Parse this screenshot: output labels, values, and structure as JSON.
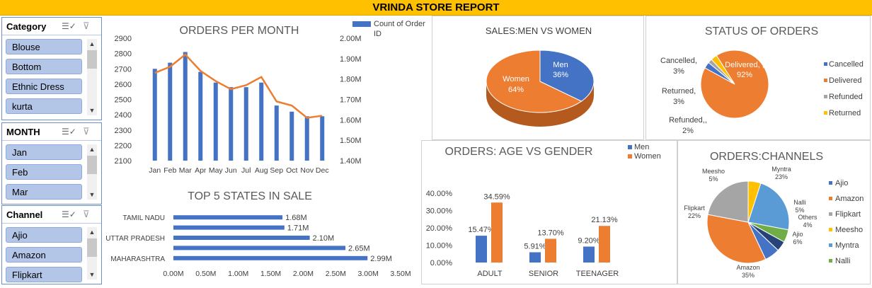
{
  "report_title": "VRINDA STORE REPORT",
  "slicers": [
    {
      "title": "Category",
      "items": [
        "Blouse",
        "Bottom",
        "Ethnic Dress",
        "kurta"
      ]
    },
    {
      "title": "MONTH",
      "items": [
        "Jan",
        "Feb",
        "Mar"
      ]
    },
    {
      "title": "Channel",
      "items": [
        "Ajio",
        "Amazon",
        "Flipkart"
      ]
    }
  ],
  "colors": {
    "blue": "#4472C4",
    "orange": "#ED7D31",
    "gray": "#A5A5A5",
    "yellow": "#FFC000",
    "lightblue": "#5B9BD5",
    "green": "#70AD47",
    "navy": "#264478"
  },
  "chart_data": [
    {
      "type": "bar",
      "title": "ORDERS PER MONTH",
      "categories": [
        "Jan",
        "Feb",
        "Mar",
        "Apr",
        "May",
        "Jun",
        "Jul",
        "Aug",
        "Sep",
        "Oct",
        "Nov",
        "Dec"
      ],
      "series": [
        {
          "name": "Count of Order ID",
          "values": [
            2700,
            2740,
            2810,
            2680,
            2610,
            2580,
            2580,
            2610,
            2460,
            2420,
            2390,
            2390
          ]
        }
      ],
      "line_values": [
        1.83,
        1.86,
        1.92,
        1.84,
        1.79,
        1.75,
        1.77,
        1.81,
        1.69,
        1.67,
        1.61,
        1.62
      ],
      "ylim": [
        2100,
        2900
      ],
      "yticks": [
        "2900",
        "2800",
        "2700",
        "2600",
        "2500",
        "2400",
        "2300",
        "2200",
        "2100"
      ],
      "y2lim": [
        1.4,
        2.0
      ],
      "y2ticks": [
        "2.00M",
        "1.90M",
        "1.80M",
        "1.70M",
        "1.60M",
        "1.50M",
        "1.40M"
      ]
    },
    {
      "type": "bar",
      "title": "TOP 5 STATES IN SALE",
      "categories": [
        "MAHARASHTRA",
        "",
        "UTTAR PRADESH",
        "",
        "TAMIL NADU"
      ],
      "values": [
        2.99,
        2.65,
        2.1,
        1.71,
        1.68
      ],
      "labels": [
        "2.99M",
        "2.65M",
        "2.10M",
        "1.71M",
        "1.68M"
      ],
      "xlim": [
        0,
        3.5
      ],
      "xticks": [
        "0.00M",
        "0.50M",
        "1.00M",
        "1.50M",
        "2.00M",
        "2.50M",
        "3.00M",
        "3.50M"
      ]
    },
    {
      "type": "pie",
      "title": "SALES:MEN VS WOMEN",
      "slices": [
        {
          "label": "Men",
          "pct": "36%",
          "value": 36
        },
        {
          "label": "Women",
          "pct": "64%",
          "value": 64
        }
      ]
    },
    {
      "type": "pie",
      "title": "STATUS OF ORDERS",
      "slices": [
        {
          "label": "Cancelled",
          "value": 3,
          "text": "Cancelled,"
        },
        {
          "label": "Delivered",
          "value": 92,
          "text": "Delivered, ,"
        },
        {
          "label": "Refunded",
          "value": 2,
          "text": "Refunded,,"
        },
        {
          "label": "Returned",
          "value": 3,
          "text": "Returned,"
        }
      ],
      "pct_labels": {
        "Cancelled": "3%",
        "Delivered": "92%",
        "Refunded": "2%",
        "Returned": "3%"
      },
      "legend": [
        "Cancelled",
        "Delivered",
        "Refunded",
        "Returned"
      ]
    },
    {
      "type": "bar",
      "title": "ORDERS: AGE VS GENDER",
      "categories": [
        "ADULT",
        "SENIOR",
        "TEENAGER"
      ],
      "series": [
        {
          "name": "Men",
          "values": [
            15.47,
            5.91,
            9.2
          ]
        },
        {
          "name": "Women",
          "values": [
            34.59,
            13.7,
            21.13
          ]
        }
      ],
      "labels": [
        [
          "15.47%",
          "5.91%",
          "9.20%"
        ],
        [
          "34.59%",
          "13.70%",
          "21.13%"
        ]
      ],
      "ylim": [
        0,
        40
      ],
      "yticks": [
        "40.00%",
        "30.00%",
        "20.00%",
        "10.00%",
        "0.00%"
      ]
    },
    {
      "type": "pie",
      "title": "ORDERS:CHANNELS",
      "slices": [
        {
          "label": "Ajio",
          "value": 6,
          "pct": "6%"
        },
        {
          "label": "Amazon",
          "value": 35,
          "pct": "35%"
        },
        {
          "label": "Flipkart",
          "value": 22,
          "pct": "22%"
        },
        {
          "label": "Meesho",
          "value": 5,
          "pct": "5%"
        },
        {
          "label": "Myntra",
          "value": 23,
          "pct": "23%"
        },
        {
          "label": "Nalli",
          "value": 5,
          "pct": "5%"
        },
        {
          "label": "Others",
          "value": 4,
          "pct": "4%"
        }
      ],
      "legend": [
        "Ajio",
        "Amazon",
        "Flipkart",
        "Meesho",
        "Myntra",
        "Nalli"
      ]
    }
  ]
}
